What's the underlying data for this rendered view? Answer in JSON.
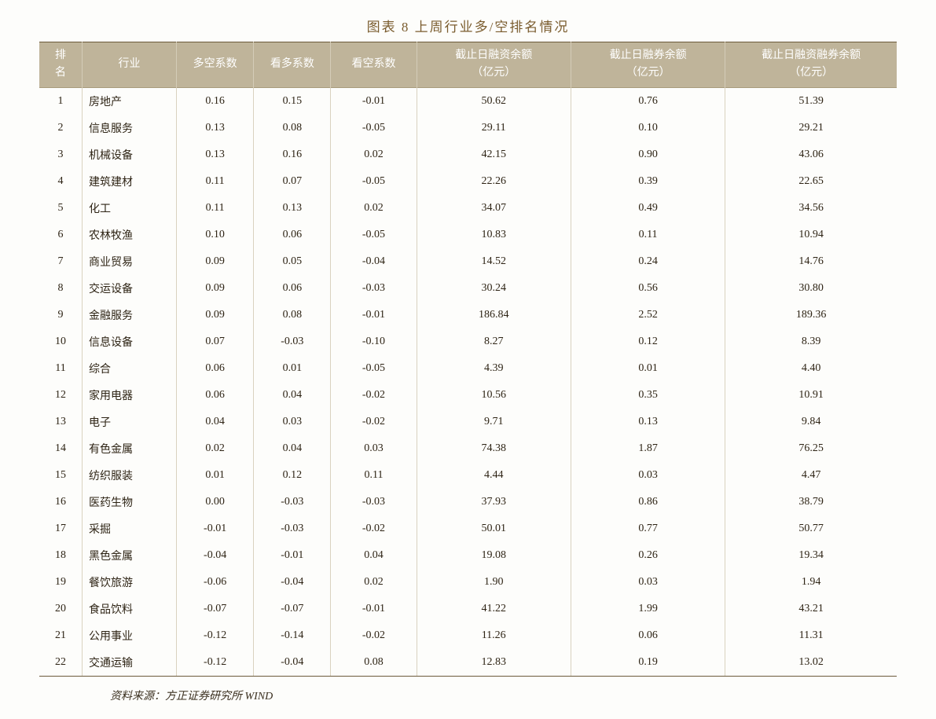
{
  "title": "图表 8  上周行业多/空排名情况",
  "headers": {
    "rank": "排\n名",
    "industry": "行业",
    "dkxs": "多空系数",
    "kdxs": "看多系数",
    "kkxs": "看空系数",
    "rz_l1": "截止日融资余额",
    "rz_l2": "（亿元）",
    "rq_l1": "截止日融券余额",
    "rq_l2": "（亿元）",
    "rzrq_l1": "截止日融资融券余额",
    "rzrq_l2": "（亿元）"
  },
  "colors": {
    "header_bg": "#bfb49a",
    "header_text": "#ffffff",
    "title_color": "#7a5c2e",
    "body_text": "#2e2415",
    "border": "#6b5a3a",
    "cell_border": "#d9d2bf",
    "background": "#fdfdfb"
  },
  "typography": {
    "title_fontsize": 17,
    "header_fontsize": 14,
    "body_fontsize": 14,
    "source_fontsize": 14,
    "font_family": "SimSun"
  },
  "rows": [
    {
      "rank": "1",
      "ind": "房地产",
      "dk": "0.16",
      "kd": "0.15",
      "kk": "-0.01",
      "rz": "50.62",
      "rq": "0.76",
      "rzrq": "51.39"
    },
    {
      "rank": "2",
      "ind": "信息服务",
      "dk": "0.13",
      "kd": "0.08",
      "kk": "-0.05",
      "rz": "29.11",
      "rq": "0.10",
      "rzrq": "29.21"
    },
    {
      "rank": "3",
      "ind": "机械设备",
      "dk": "0.13",
      "kd": "0.16",
      "kk": "0.02",
      "rz": "42.15",
      "rq": "0.90",
      "rzrq": "43.06"
    },
    {
      "rank": "4",
      "ind": "建筑建材",
      "dk": "0.11",
      "kd": "0.07",
      "kk": "-0.05",
      "rz": "22.26",
      "rq": "0.39",
      "rzrq": "22.65"
    },
    {
      "rank": "5",
      "ind": "化工",
      "dk": "0.11",
      "kd": "0.13",
      "kk": "0.02",
      "rz": "34.07",
      "rq": "0.49",
      "rzrq": "34.56"
    },
    {
      "rank": "6",
      "ind": "农林牧渔",
      "dk": "0.10",
      "kd": "0.06",
      "kk": "-0.05",
      "rz": "10.83",
      "rq": "0.11",
      "rzrq": "10.94"
    },
    {
      "rank": "7",
      "ind": "商业贸易",
      "dk": "0.09",
      "kd": "0.05",
      "kk": "-0.04",
      "rz": "14.52",
      "rq": "0.24",
      "rzrq": "14.76"
    },
    {
      "rank": "8",
      "ind": "交运设备",
      "dk": "0.09",
      "kd": "0.06",
      "kk": "-0.03",
      "rz": "30.24",
      "rq": "0.56",
      "rzrq": "30.80"
    },
    {
      "rank": "9",
      "ind": "金融服务",
      "dk": "0.09",
      "kd": "0.08",
      "kk": "-0.01",
      "rz": "186.84",
      "rq": "2.52",
      "rzrq": "189.36"
    },
    {
      "rank": "10",
      "ind": "信息设备",
      "dk": "0.07",
      "kd": "-0.03",
      "kk": "-0.10",
      "rz": "8.27",
      "rq": "0.12",
      "rzrq": "8.39"
    },
    {
      "rank": "11",
      "ind": "综合",
      "dk": "0.06",
      "kd": "0.01",
      "kk": "-0.05",
      "rz": "4.39",
      "rq": "0.01",
      "rzrq": "4.40"
    },
    {
      "rank": "12",
      "ind": "家用电器",
      "dk": "0.06",
      "kd": "0.04",
      "kk": "-0.02",
      "rz": "10.56",
      "rq": "0.35",
      "rzrq": "10.91"
    },
    {
      "rank": "13",
      "ind": "电子",
      "dk": "0.04",
      "kd": "0.03",
      "kk": "-0.02",
      "rz": "9.71",
      "rq": "0.13",
      "rzrq": "9.84"
    },
    {
      "rank": "14",
      "ind": "有色金属",
      "dk": "0.02",
      "kd": "0.04",
      "kk": "0.03",
      "rz": "74.38",
      "rq": "1.87",
      "rzrq": "76.25"
    },
    {
      "rank": "15",
      "ind": "纺织服装",
      "dk": "0.01",
      "kd": "0.12",
      "kk": "0.11",
      "rz": "4.44",
      "rq": "0.03",
      "rzrq": "4.47"
    },
    {
      "rank": "16",
      "ind": "医药生物",
      "dk": "0.00",
      "kd": "-0.03",
      "kk": "-0.03",
      "rz": "37.93",
      "rq": "0.86",
      "rzrq": "38.79"
    },
    {
      "rank": "17",
      "ind": "采掘",
      "dk": "-0.01",
      "kd": "-0.03",
      "kk": "-0.02",
      "rz": "50.01",
      "rq": "0.77",
      "rzrq": "50.77"
    },
    {
      "rank": "18",
      "ind": "黑色金属",
      "dk": "-0.04",
      "kd": "-0.01",
      "kk": "0.04",
      "rz": "19.08",
      "rq": "0.26",
      "rzrq": "19.34"
    },
    {
      "rank": "19",
      "ind": "餐饮旅游",
      "dk": "-0.06",
      "kd": "-0.04",
      "kk": "0.02",
      "rz": "1.90",
      "rq": "0.03",
      "rzrq": "1.94"
    },
    {
      "rank": "20",
      "ind": "食品饮料",
      "dk": "-0.07",
      "kd": "-0.07",
      "kk": "-0.01",
      "rz": "41.22",
      "rq": "1.99",
      "rzrq": "43.21"
    },
    {
      "rank": "21",
      "ind": "公用事业",
      "dk": "-0.12",
      "kd": "-0.14",
      "kk": "-0.02",
      "rz": "11.26",
      "rq": "0.06",
      "rzrq": "11.31"
    },
    {
      "rank": "22",
      "ind": "交通运输",
      "dk": "-0.12",
      "kd": "-0.04",
      "kk": "0.08",
      "rz": "12.83",
      "rq": "0.19",
      "rzrq": "13.02"
    }
  ],
  "source": "资料来源：方正证券研究所  WIND"
}
